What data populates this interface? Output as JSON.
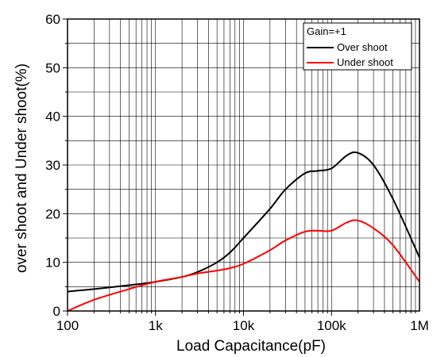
{
  "chart_data": {
    "type": "line",
    "xlabel": "Load Capacitance(pF)",
    "ylabel": "over shoot and Under shoot(%)",
    "x_scale": "log",
    "xlim": [
      100,
      1000000
    ],
    "ylim": [
      0,
      60
    ],
    "grid": true,
    "x_ticks": [
      {
        "value": 100,
        "label": "100"
      },
      {
        "value": 1000,
        "label": "1k"
      },
      {
        "value": 10000,
        "label": "10k"
      },
      {
        "value": 100000,
        "label": "100k"
      },
      {
        "value": 1000000,
        "label": "1M"
      }
    ],
    "y_ticks": [
      {
        "value": 0,
        "label": "0"
      },
      {
        "value": 10,
        "label": "10"
      },
      {
        "value": 20,
        "label": "20"
      },
      {
        "value": 30,
        "label": "30"
      },
      {
        "value": 40,
        "label": "40"
      },
      {
        "value": 50,
        "label": "50"
      },
      {
        "value": 60,
        "label": "60"
      }
    ],
    "legend": {
      "title": "Gain=+1",
      "position": "top-right"
    },
    "series": [
      {
        "name": "Over shoot",
        "color": "#000000",
        "x": [
          100,
          200,
          500,
          1000,
          2000,
          3000,
          5000,
          7000,
          10000,
          20000,
          30000,
          50000,
          70000,
          100000,
          150000,
          200000,
          300000,
          500000,
          1000000
        ],
        "y": [
          4.0,
          4.5,
          5.3,
          6.0,
          7.0,
          8.0,
          10.0,
          12.0,
          15.0,
          21.0,
          25.0,
          28.3,
          28.8,
          29.3,
          32.0,
          32.5,
          30.0,
          23.0,
          11.0
        ]
      },
      {
        "name": "Under shoot",
        "color": "#ff0000",
        "x": [
          100,
          200,
          500,
          1000,
          2000,
          3000,
          5000,
          7000,
          10000,
          20000,
          30000,
          50000,
          70000,
          100000,
          150000,
          200000,
          300000,
          500000,
          1000000
        ],
        "y": [
          0.0,
          2.3,
          4.5,
          6.0,
          7.0,
          7.7,
          8.3,
          8.8,
          9.7,
          12.5,
          14.5,
          16.3,
          16.5,
          16.5,
          18.2,
          18.6,
          17.0,
          13.5,
          6.0
        ]
      }
    ]
  }
}
